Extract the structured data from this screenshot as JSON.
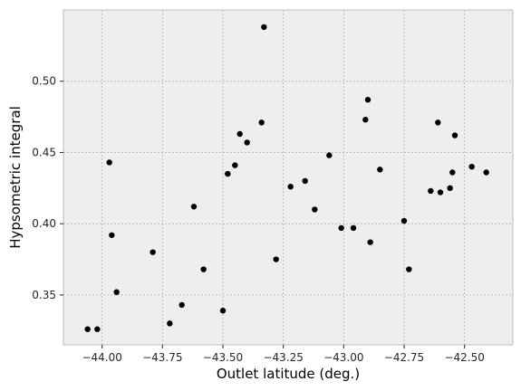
{
  "colors": {
    "plot_background": "#eeeeee",
    "frame": "#bcbcbc",
    "grid": "#b0b0b0",
    "marker": "#000000",
    "tick_text": "#262626"
  },
  "chart_data": {
    "type": "scatter",
    "title": "",
    "xlabel": "Outlet latitude (deg.)",
    "ylabel": "Hypsometric integral",
    "xlim": [
      -44.16,
      -42.3
    ],
    "ylim": [
      0.315,
      0.55
    ],
    "grid": true,
    "legend": "none",
    "x_ticks": [
      -44.0,
      -43.75,
      -43.5,
      -43.25,
      -43.0,
      -42.75,
      -42.5
    ],
    "x_tick_labels": [
      "−44.00",
      "−43.75",
      "−43.50",
      "−43.25",
      "−43.00",
      "−42.75",
      "−42.50"
    ],
    "y_ticks": [
      0.35,
      0.4,
      0.45,
      0.5
    ],
    "y_tick_labels": [
      "0.35",
      "0.40",
      "0.45",
      "0.50"
    ],
    "series": [
      {
        "points": [
          [
            -44.06,
            0.326
          ],
          [
            -44.02,
            0.326
          ],
          [
            -43.97,
            0.443
          ],
          [
            -43.96,
            0.392
          ],
          [
            -43.94,
            0.352
          ],
          [
            -43.79,
            0.38
          ],
          [
            -43.72,
            0.33
          ],
          [
            -43.67,
            0.343
          ],
          [
            -43.62,
            0.412
          ],
          [
            -43.58,
            0.368
          ],
          [
            -43.5,
            0.339
          ],
          [
            -43.48,
            0.435
          ],
          [
            -43.45,
            0.441
          ],
          [
            -43.43,
            0.463
          ],
          [
            -43.4,
            0.457
          ],
          [
            -43.34,
            0.471
          ],
          [
            -43.33,
            0.538
          ],
          [
            -43.28,
            0.375
          ],
          [
            -43.22,
            0.426
          ],
          [
            -43.16,
            0.43
          ],
          [
            -43.12,
            0.41
          ],
          [
            -43.06,
            0.448
          ],
          [
            -43.01,
            0.397
          ],
          [
            -42.96,
            0.397
          ],
          [
            -42.91,
            0.473
          ],
          [
            -42.9,
            0.487
          ],
          [
            -42.89,
            0.387
          ],
          [
            -42.85,
            0.438
          ],
          [
            -42.75,
            0.402
          ],
          [
            -42.73,
            0.368
          ],
          [
            -42.64,
            0.423
          ],
          [
            -42.61,
            0.471
          ],
          [
            -42.6,
            0.422
          ],
          [
            -42.56,
            0.425
          ],
          [
            -42.55,
            0.436
          ],
          [
            -42.54,
            0.462
          ],
          [
            -42.47,
            0.44
          ],
          [
            -42.41,
            0.436
          ]
        ]
      }
    ]
  }
}
